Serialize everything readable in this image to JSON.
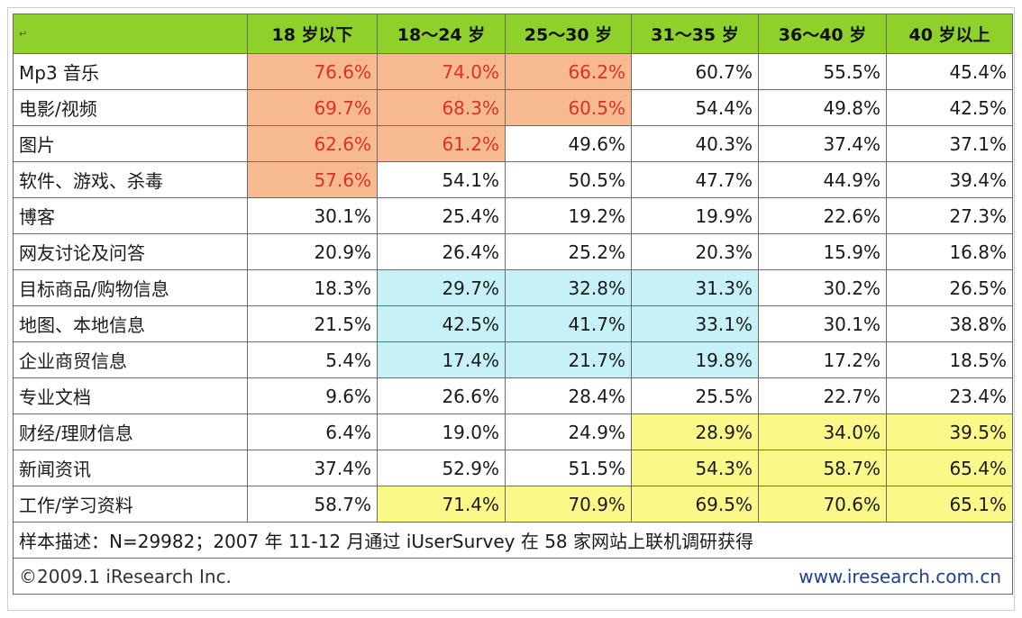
{
  "table": {
    "corner": "↵",
    "headers": [
      "18 岁以下",
      "18～24 岁",
      "25～30 岁",
      "31～35 岁",
      "36～40 岁",
      "40 岁以上"
    ],
    "rows": [
      {
        "label": "Mp3 音乐",
        "values": [
          "76.6%",
          "74.0%",
          "66.2%",
          "60.7%",
          "55.5%",
          "45.4%"
        ],
        "hl": [
          "o",
          "o",
          "o",
          "",
          "",
          ""
        ]
      },
      {
        "label": "电影/视频",
        "values": [
          "69.7%",
          "68.3%",
          "60.5%",
          "54.4%",
          "49.8%",
          "42.5%"
        ],
        "hl": [
          "o",
          "o",
          "o",
          "",
          "",
          ""
        ]
      },
      {
        "label": "图片",
        "values": [
          "62.6%",
          "61.2%",
          "49.6%",
          "40.3%",
          "37.4%",
          "37.1%"
        ],
        "hl": [
          "o",
          "o",
          "",
          "",
          "",
          ""
        ]
      },
      {
        "label": "软件、游戏、杀毒",
        "values": [
          "57.6%",
          "54.1%",
          "50.5%",
          "47.7%",
          "44.9%",
          "39.4%"
        ],
        "hl": [
          "o",
          "",
          "",
          "",
          "",
          ""
        ]
      },
      {
        "label": "博客",
        "values": [
          "30.1%",
          "25.4%",
          "19.2%",
          "19.9%",
          "22.6%",
          "27.3%"
        ],
        "hl": [
          "",
          "",
          "",
          "",
          "",
          ""
        ]
      },
      {
        "label": "网友讨论及问答",
        "values": [
          "20.9%",
          "26.4%",
          "25.2%",
          "20.3%",
          "15.9%",
          "16.8%"
        ],
        "hl": [
          "",
          "",
          "",
          "",
          "",
          ""
        ]
      },
      {
        "label": "目标商品/购物信息",
        "values": [
          "18.3%",
          "29.7%",
          "32.8%",
          "31.3%",
          "30.2%",
          "26.5%"
        ],
        "hl": [
          "",
          "b",
          "b",
          "b",
          "",
          ""
        ]
      },
      {
        "label": "地图、本地信息",
        "values": [
          "21.5%",
          "42.5%",
          "41.7%",
          "33.1%",
          "30.1%",
          "38.8%"
        ],
        "hl": [
          "",
          "b",
          "b",
          "b",
          "",
          ""
        ]
      },
      {
        "label": "企业商贸信息",
        "values": [
          "5.4%",
          "17.4%",
          "21.7%",
          "19.8%",
          "17.2%",
          "18.5%"
        ],
        "hl": [
          "",
          "b",
          "b",
          "b",
          "",
          ""
        ]
      },
      {
        "label": "专业文档",
        "values": [
          "9.6%",
          "26.6%",
          "28.4%",
          "25.5%",
          "22.7%",
          "23.4%"
        ],
        "hl": [
          "",
          "",
          "",
          "",
          "",
          ""
        ]
      },
      {
        "label": "财经/理财信息",
        "values": [
          "6.4%",
          "19.0%",
          "24.9%",
          "28.9%",
          "34.0%",
          "39.5%"
        ],
        "hl": [
          "",
          "",
          "",
          "y",
          "y",
          "y"
        ]
      },
      {
        "label": "新闻资讯",
        "values": [
          "37.4%",
          "52.9%",
          "51.5%",
          "54.3%",
          "58.7%",
          "65.4%"
        ],
        "hl": [
          "",
          "",
          "",
          "y",
          "y",
          "y"
        ]
      },
      {
        "label": "工作/学习资料",
        "values": [
          "58.7%",
          "71.4%",
          "70.9%",
          "69.5%",
          "70.6%",
          "65.1%"
        ],
        "hl": [
          "",
          "y",
          "y",
          "y",
          "y",
          "y"
        ]
      }
    ],
    "note": "样本描述：N=29982；2007 年 11-12 月通过 iUserSurvey 在 58 家网站上联机调研获得",
    "copyright": "©2009.1 iResearch Inc.",
    "website": "www.iresearch.com.cn"
  },
  "colors": {
    "header": "#8fd12a",
    "orange": "#f7b98f",
    "orange_text": "#d9322a",
    "blue": "#c6f1f7",
    "yellow": "#fbf88a"
  }
}
